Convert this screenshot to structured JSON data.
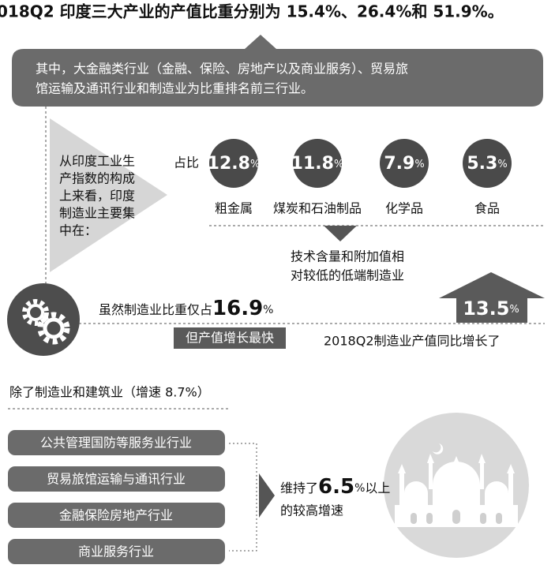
{
  "title": "018Q2 印度三大产业的产值比重分别为 15.4%、26.4%和 51.9%。",
  "summary": [
    "其中，大金融类行业（金融、保险、房地产以及商业服务）、贸易旅",
    "馆运输及通讯行业和制造业为比重排名前三行业。"
  ],
  "focus": {
    "intro_lines": [
      "从印度工业生",
      "产指数的构成",
      "上来看，印度",
      "制造业主要集",
      "中在："
    ],
    "share_label": "占比",
    "items": [
      {
        "value": "12.8",
        "unit": "%",
        "label": "粗金属"
      },
      {
        "value": "11.8",
        "unit": "%",
        "label": "煤炭和石油制品"
      },
      {
        "value": "7.9",
        "unit": "%",
        "label": "化学品"
      },
      {
        "value": "5.3",
        "unit": "%",
        "label": "食品"
      }
    ],
    "note_lines": [
      "技术含量和附加值相",
      "对较低的低端制造业"
    ]
  },
  "growth": {
    "prefix": "虽然制造业比重仅占",
    "share": {
      "value": "16.9",
      "unit": "%"
    },
    "highlight": "但产值增长最快",
    "caption": "2018Q2制造业产值同比增长了",
    "rate": {
      "value": "13.5",
      "unit": "%"
    }
  },
  "others": {
    "heading": "除了制造业和建筑业（增速 8.7%）",
    "sectors": [
      "公共管理国防等服务业行业",
      "贸易旅馆运输与通讯行业",
      "金融保险房地产行业",
      "商业服务行业"
    ],
    "conclusion": {
      "prefix": "维持了",
      "value": "6.5",
      "unit": "%",
      "suffix": "以上",
      "line2": "的较高增速"
    }
  }
}
